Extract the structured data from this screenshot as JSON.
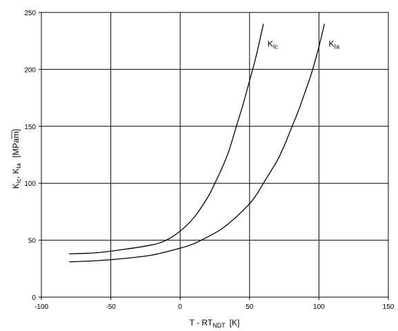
{
  "chart_data": {
    "type": "line",
    "title": "",
    "xlabel": {
      "base": "T - RT",
      "sub": "NDT",
      "unit": "[K]"
    },
    "ylabel": {
      "k1": "K",
      "k1_sub": "Ic",
      "sep": ", ",
      "k2": "K",
      "k2_sub": "Ia",
      "unit_open": "[MPa",
      "unit_root": "m",
      "unit_close": "]"
    },
    "xlim": [
      -100,
      150
    ],
    "ylim": [
      0,
      250
    ],
    "xticks": [
      -100,
      -50,
      0,
      50,
      100,
      150
    ],
    "yticks": [
      0,
      50,
      100,
      150,
      200,
      250
    ],
    "grid": true,
    "legend": "inline labels near curve ends",
    "series": [
      {
        "base": "K",
        "sub": "Ic",
        "x": [
          -80,
          -60,
          -40,
          -20,
          -10,
          0,
          10,
          20,
          25,
          30,
          35,
          40,
          45,
          50,
          55,
          60
        ],
        "y": [
          38,
          39,
          42,
          46,
          50,
          58,
          70,
          88,
          100,
          113,
          128,
          148,
          168,
          190,
          213,
          240
        ]
      },
      {
        "base": "K",
        "sub": "Ia",
        "x": [
          -80,
          -60,
          -40,
          -20,
          0,
          10,
          20,
          30,
          40,
          50,
          55,
          60,
          65,
          70,
          75,
          80,
          85,
          90,
          95,
          100,
          104
        ],
        "y": [
          31,
          32,
          34,
          37,
          43,
          47,
          53,
          60,
          70,
          82,
          90,
          100,
          110,
          120,
          133,
          148,
          163,
          180,
          198,
          220,
          240
        ]
      }
    ]
  }
}
